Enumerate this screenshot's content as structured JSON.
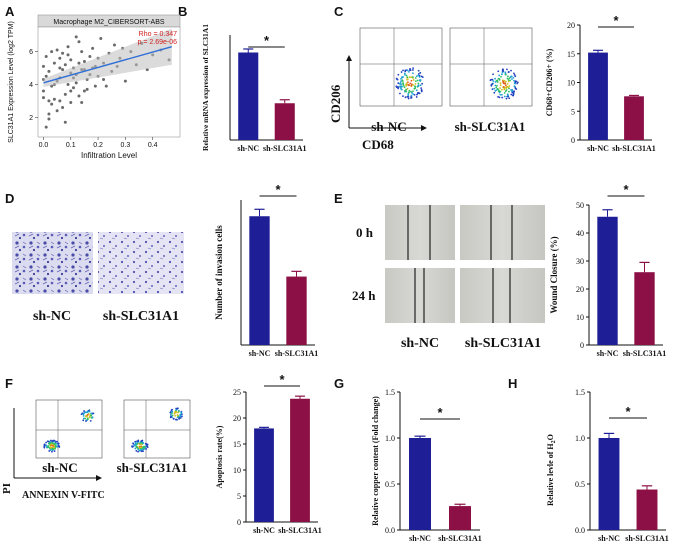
{
  "panels": {
    "A": {
      "letter": "A",
      "plot_title": "Macrophage M2_CIBERSORT-ABS",
      "rho_text": "Rho = 0.347",
      "p_text": "p = 2.69e-06",
      "chart_data": {
        "type": "scatter",
        "title": "Macrophage M2_CIBERSORT-ABS",
        "xlabel": "Infiltration Level",
        "ylabel": "SLC31A1 Expression Level (log2 TPM)",
        "xlim": [
          -0.02,
          0.5
        ],
        "ylim": [
          0.8,
          7.5
        ],
        "xticks": [
          "0.0",
          "0.1",
          "0.2",
          "0.3",
          "0.4"
        ],
        "yticks": [
          "2",
          "4",
          "6"
        ],
        "fit": {
          "x0": 0.0,
          "y0": 4.1,
          "x1": 0.47,
          "y1": 6.3
        },
        "points": [
          [
            0.0,
            3.2
          ],
          [
            0.01,
            4.5
          ],
          [
            0.02,
            2.2
          ],
          [
            0.0,
            5.1
          ],
          [
            0.03,
            3.9
          ],
          [
            0.01,
            1.4
          ],
          [
            0.02,
            4.8
          ],
          [
            0.04,
            5.3
          ],
          [
            0.0,
            3.6
          ],
          [
            0.05,
            4.2
          ],
          [
            0.03,
            2.8
          ],
          [
            0.06,
            5.6
          ],
          [
            0.04,
            3.1
          ],
          [
            0.07,
            4.9
          ],
          [
            0.05,
            6.1
          ],
          [
            0.08,
            3.4
          ],
          [
            0.06,
            4.4
          ],
          [
            0.09,
            5.8
          ],
          [
            0.07,
            2.6
          ],
          [
            0.1,
            4.7
          ],
          [
            0.08,
            5.2
          ],
          [
            0.11,
            3.8
          ],
          [
            0.09,
            6.3
          ],
          [
            0.12,
            4.6
          ],
          [
            0.1,
            5.5
          ],
          [
            0.13,
            3.3
          ],
          [
            0.11,
            5.0
          ],
          [
            0.14,
            6.0
          ],
          [
            0.12,
            4.1
          ],
          [
            0.15,
            5.4
          ],
          [
            0.13,
            6.6
          ],
          [
            0.16,
            4.3
          ],
          [
            0.14,
            2.9
          ],
          [
            0.17,
            5.7
          ],
          [
            0.15,
            4.9
          ],
          [
            0.18,
            6.2
          ],
          [
            0.16,
            3.7
          ],
          [
            0.19,
            5.1
          ],
          [
            0.2,
            4.5
          ],
          [
            0.21,
            6.8
          ],
          [
            0.22,
            5.3
          ],
          [
            0.23,
            3.9
          ],
          [
            0.24,
            5.9
          ],
          [
            0.25,
            4.8
          ],
          [
            0.26,
            6.4
          ],
          [
            0.28,
            5.6
          ],
          [
            0.3,
            4.2
          ],
          [
            0.32,
            6.0
          ],
          [
            0.34,
            5.2
          ],
          [
            0.36,
            6.5
          ],
          [
            0.38,
            4.9
          ],
          [
            0.4,
            5.8
          ],
          [
            0.43,
            6.1
          ],
          [
            0.46,
            5.5
          ],
          [
            0.02,
            1.9
          ],
          [
            0.05,
            2.4
          ],
          [
            0.03,
            6.0
          ],
          [
            0.08,
            1.7
          ],
          [
            0.1,
            2.9
          ],
          [
            0.12,
            6.9
          ],
          [
            0.0,
            4.3
          ],
          [
            0.01,
            5.7
          ],
          [
            0.04,
            4.0
          ],
          [
            0.06,
            3.0
          ],
          [
            0.07,
            5.9
          ],
          [
            0.09,
            4.0
          ],
          [
            0.11,
            4.4
          ],
          [
            0.13,
            5.3
          ],
          [
            0.15,
            3.6
          ],
          [
            0.17,
            4.6
          ],
          [
            0.19,
            3.9
          ],
          [
            0.2,
            5.6
          ],
          [
            0.22,
            4.3
          ],
          [
            0.18,
            5.0
          ],
          [
            0.14,
            4.9
          ],
          [
            0.1,
            3.6
          ],
          [
            0.06,
            5.0
          ],
          [
            0.02,
            3.0
          ],
          [
            0.27,
            5.1
          ],
          [
            0.29,
            6.2
          ]
        ]
      }
    },
    "B": {
      "letter": "B",
      "sig": "*",
      "chart_data": {
        "type": "bar",
        "categories": [
          "sh-NC",
          "sh-SLC31A1"
        ],
        "values": [
          1.0,
          0.42
        ],
        "errors": [
          0.04,
          0.04
        ],
        "colors": [
          "#1e1e96",
          "#8c0f46"
        ],
        "ylabel": "Relative mRNA expression of SLC31A1",
        "ylim": [
          0,
          1.2
        ]
      }
    },
    "C": {
      "letter": "C",
      "sig": "*",
      "y_axis_label": "CD206",
      "x_axis_label": "CD68",
      "flow_labels": [
        "sh-NC",
        "sh-SLC31A1"
      ],
      "chart_data": {
        "type": "bar",
        "categories": [
          "sh-NC",
          "sh-SLC31A1"
        ],
        "values": [
          15.2,
          7.6
        ],
        "errors": [
          0.4,
          0.15
        ],
        "colors": [
          "#1e1e96",
          "#8c0f46"
        ],
        "ylabel": "CD68+CD206+ (%)",
        "ylim": [
          0,
          20
        ],
        "yticks": [
          "0",
          "5",
          "10",
          "15",
          "20"
        ]
      }
    },
    "D": {
      "letter": "D",
      "sig": "*",
      "image_labels": [
        "sh-NC",
        "sh-SLC31A1"
      ],
      "chart_data": {
        "type": "bar",
        "categories": [
          "sh-NC",
          "sh-SLC31A1"
        ],
        "values": [
          222,
          118
        ],
        "errors": [
          12,
          9
        ],
        "colors": [
          "#1e1e96",
          "#8c0f46"
        ],
        "ylabel": "Number of invasion cells",
        "ylim": [
          0,
          250
        ]
      }
    },
    "E": {
      "letter": "E",
      "sig": "*",
      "time_labels": [
        "0 h",
        "24 h"
      ],
      "image_labels": [
        "sh-NC",
        "sh-SLC31A1"
      ],
      "chart_data": {
        "type": "bar",
        "categories": [
          "sh-NC",
          "sh-SLC31A1"
        ],
        "values": [
          45.8,
          26
        ],
        "errors": [
          2.5,
          3.5
        ],
        "colors": [
          "#1e1e96",
          "#8c0f46"
        ],
        "ylabel": "Wound Closure (%)",
        "ylim": [
          0,
          50
        ],
        "yticks": [
          "0",
          "10",
          "20",
          "30",
          "40",
          "50"
        ]
      }
    },
    "F": {
      "letter": "F",
      "sig": "*",
      "y_axis_label": "PI",
      "x_axis_label": "ANNEXIN V-FITC",
      "flow_labels": [
        "sh-NC",
        "sh-SLC31A1"
      ],
      "chart_data": {
        "type": "bar",
        "categories": [
          "sh-NC",
          "sh-SLC31A1"
        ],
        "values": [
          18,
          23.7
        ],
        "errors": [
          0.2,
          0.5
        ],
        "colors": [
          "#1e1e96",
          "#8c0f46"
        ],
        "ylabel": "Apoptosis rate(%)",
        "ylim": [
          0,
          25
        ],
        "yticks": [
          "0",
          "5",
          "10",
          "15",
          "20",
          "25"
        ]
      }
    },
    "G": {
      "letter": "G",
      "sig": "*",
      "chart_data": {
        "type": "bar",
        "categories": [
          "sh-NC",
          "sh-SLC31A1"
        ],
        "values": [
          1.0,
          0.26
        ],
        "errors": [
          0.02,
          0.02
        ],
        "colors": [
          "#1e1e96",
          "#8c0f46"
        ],
        "ylabel": "Relative copper content (Fold change)",
        "ylim": [
          0,
          1.5
        ],
        "yticks": [
          "0.0",
          "0.5",
          "1.0",
          "1.5"
        ]
      }
    },
    "H": {
      "letter": "H",
      "sig": "*",
      "chart_data": {
        "type": "bar",
        "categories": [
          "sh-NC",
          "sh-SLC31A1"
        ],
        "values": [
          1.0,
          0.44
        ],
        "errors": [
          0.05,
          0.04
        ],
        "colors": [
          "#1e1e96",
          "#8c0f46"
        ],
        "ylabel_main": "Relative levle of H",
        "ylabel_sub2": "2",
        "ylabel_o": "O",
        "ylim": [
          0,
          1.5
        ],
        "yticks": [
          "0.0",
          "0.5",
          "1.0",
          "1.5"
        ]
      }
    }
  }
}
